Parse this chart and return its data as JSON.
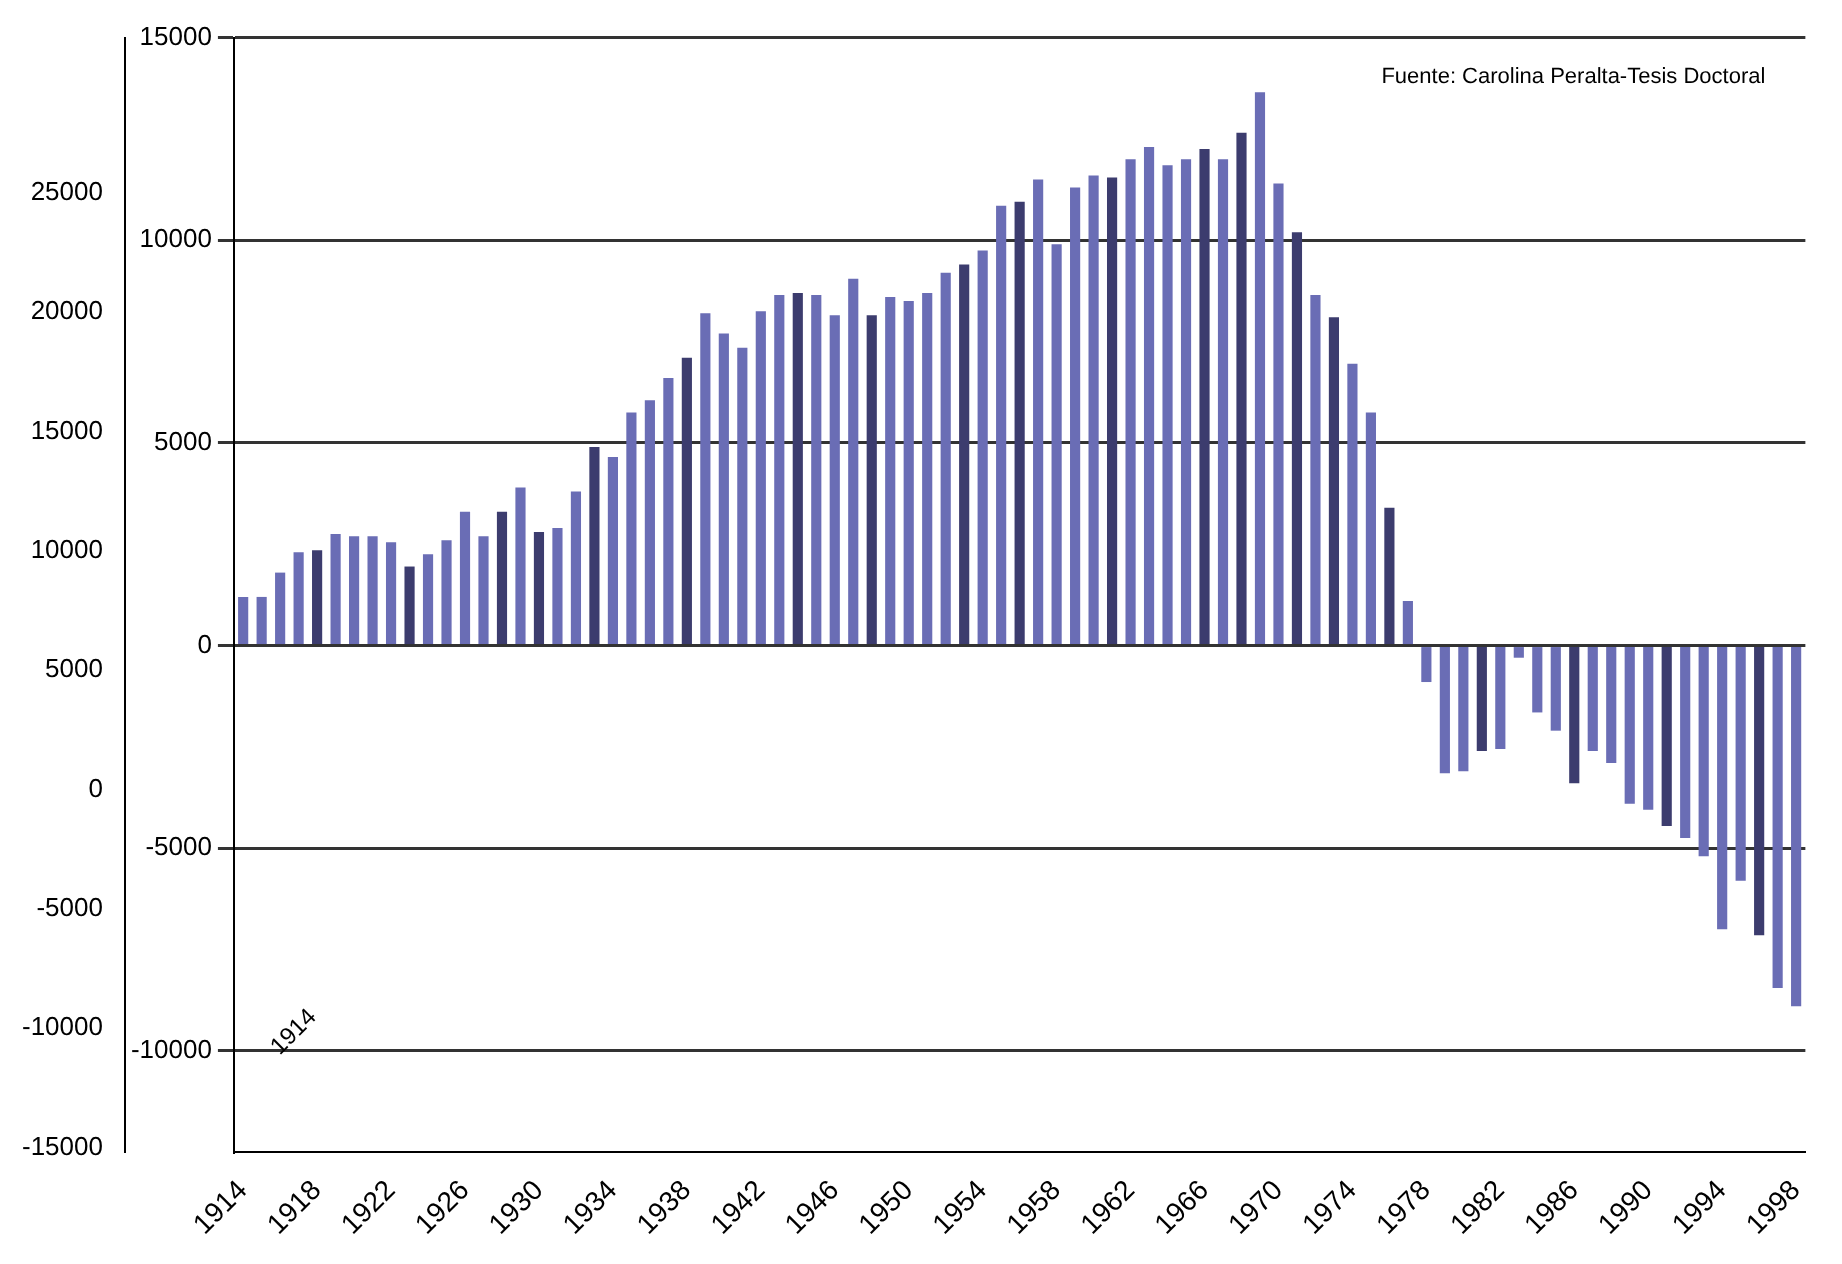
{
  "chart_data": {
    "type": "bar",
    "categories": [
      "1914",
      null,
      null,
      null,
      "1918",
      null,
      null,
      null,
      "1922",
      null,
      null,
      null,
      "1926",
      null,
      null,
      null,
      "1930",
      null,
      null,
      null,
      "1934",
      null,
      null,
      null,
      "1938",
      null,
      null,
      null,
      "1942",
      null,
      null,
      null,
      "1946",
      null,
      null,
      null,
      "1950",
      null,
      null,
      null,
      "1954",
      null,
      null,
      null,
      "1958",
      null,
      null,
      null,
      "1962",
      null,
      null,
      null,
      "1966",
      null,
      null,
      null,
      "1970",
      null,
      null,
      null,
      "1974",
      null,
      null,
      null,
      "1978",
      null,
      null,
      null,
      "1982",
      null,
      null,
      null,
      "1986",
      null,
      null,
      null,
      "1990",
      null,
      null,
      null,
      "1994",
      null,
      null,
      null,
      "1998"
    ],
    "values": [
      1200,
      1200,
      1800,
      2300,
      2350,
      2750,
      2700,
      2700,
      2550,
      1950,
      2250,
      2600,
      3300,
      2700,
      3300,
      3900,
      2800,
      2900,
      3800,
      4900,
      4650,
      5750,
      6050,
      6600,
      7100,
      8200,
      7700,
      7350,
      8250,
      8650,
      8700,
      8650,
      8150,
      9050,
      8150,
      8600,
      8500,
      8700,
      9200,
      9400,
      9750,
      10850,
      10950,
      11500,
      9900,
      11300,
      11600,
      11550,
      12000,
      12300,
      11850,
      12000,
      12250,
      12000,
      12650,
      13650,
      11400,
      10200,
      8650,
      8100,
      6950,
      5750,
      3400,
      1100,
      -900,
      -3150,
      -3100,
      -2600,
      -2550,
      -300,
      -1650,
      -2100,
      -3400,
      -2600,
      -2900,
      -3900,
      -4050,
      -4450,
      -4750,
      -5200,
      -7000,
      -5800,
      -7150,
      -8450,
      -8900
    ],
    "colors": [
      "#6a6db5",
      "#6a6db5",
      "#6a6db5",
      "#6a6db5",
      "#3c3c6e",
      "#6a6db5",
      "#6a6db5",
      "#6a6db5",
      "#6a6db5",
      "#3c3c6e",
      "#6a6db5",
      "#6a6db5",
      "#6a6db5",
      "#6a6db5",
      "#3c3c6e",
      "#6a6db5",
      "#3c3c6e",
      "#6a6db5",
      "#6a6db5",
      "#3c3c6e",
      "#6a6db5",
      "#6a6db5",
      "#6a6db5",
      "#6a6db5",
      "#3c3c6e",
      "#6a6db5",
      "#6a6db5",
      "#6a6db5",
      "#6a6db5",
      "#6a6db5",
      "#3c3c6e",
      "#6a6db5",
      "#6a6db5",
      "#6a6db5",
      "#3c3c6e",
      "#6a6db5",
      "#6a6db5",
      "#6a6db5",
      "#6a6db5",
      "#3c3c6e",
      "#6a6db5",
      "#6a6db5",
      "#3c3c6e",
      "#6a6db5",
      "#6a6db5",
      "#6a6db5",
      "#6a6db5",
      "#3c3c6e",
      "#6a6db5",
      "#6a6db5",
      "#6a6db5",
      "#6a6db5",
      "#3c3c6e",
      "#6a6db5",
      "#3c3c6e",
      "#6a6db5",
      "#6a6db5",
      "#3c3c6e",
      "#6a6db5",
      "#3c3c6e",
      "#6a6db5",
      "#6a6db5",
      "#3c3c6e",
      "#6a6db5",
      "#6a6db5",
      "#6a6db5",
      "#6a6db5",
      "#3c3c6e",
      "#6a6db5",
      "#6a6db5",
      "#6a6db5",
      "#6a6db5",
      "#3c3c6e",
      "#6a6db5",
      "#6a6db5",
      "#6a6db5",
      "#6a6db5",
      "#3c3c6e",
      "#6a6db5",
      "#6a6db5",
      "#6a6db5",
      "#6a6db5",
      "#3c3c6e",
      "#6a6db5",
      "#6a6db5"
    ],
    "ylim": [
      -12500,
      15000
    ],
    "yticks": [
      15000,
      10000,
      5000,
      0,
      -5000,
      -10000
    ],
    "y2lim": [
      -15200,
      31500
    ],
    "y2ticks": [
      25000,
      20000,
      15000,
      10000,
      5000,
      0,
      -5000,
      -10000,
      -15000
    ],
    "grid": "y",
    "annotations": [
      "Fuente: Carolina Peralta-Tesis Doctoral",
      "1914"
    ]
  }
}
